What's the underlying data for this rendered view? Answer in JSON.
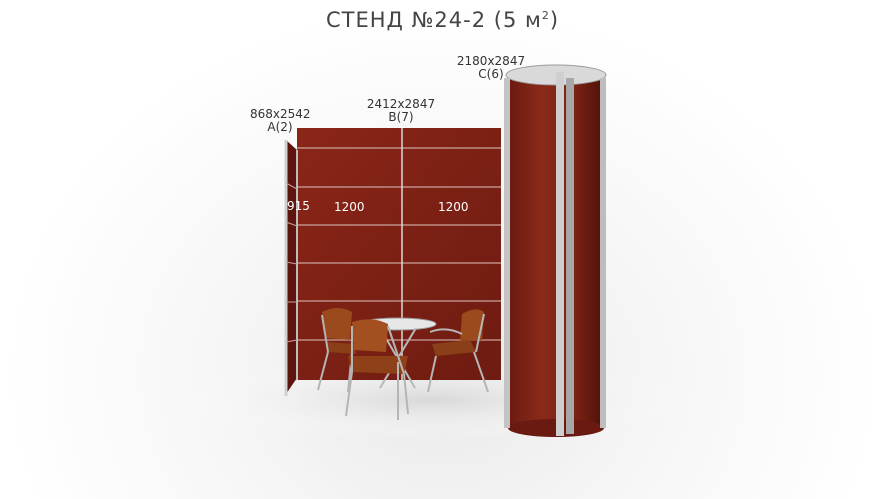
{
  "title": {
    "main": "СТЕНД №24-2 (5 м",
    "sup": "2",
    "close": ")"
  },
  "panels": [
    {
      "size": "868x2542",
      "code": "A(2)"
    },
    {
      "size": "2412x2847",
      "code": "B(7)"
    },
    {
      "size": "2180x2847",
      "code": "C(6)"
    }
  ],
  "dimensions": {
    "side": "915",
    "back_left": "1200",
    "back_right": "1200"
  },
  "colors": {
    "wall": "#7a1f14",
    "wall_dark": "#5e150d",
    "frame": "#c8c8c8",
    "chair": "#9b4a1e"
  }
}
